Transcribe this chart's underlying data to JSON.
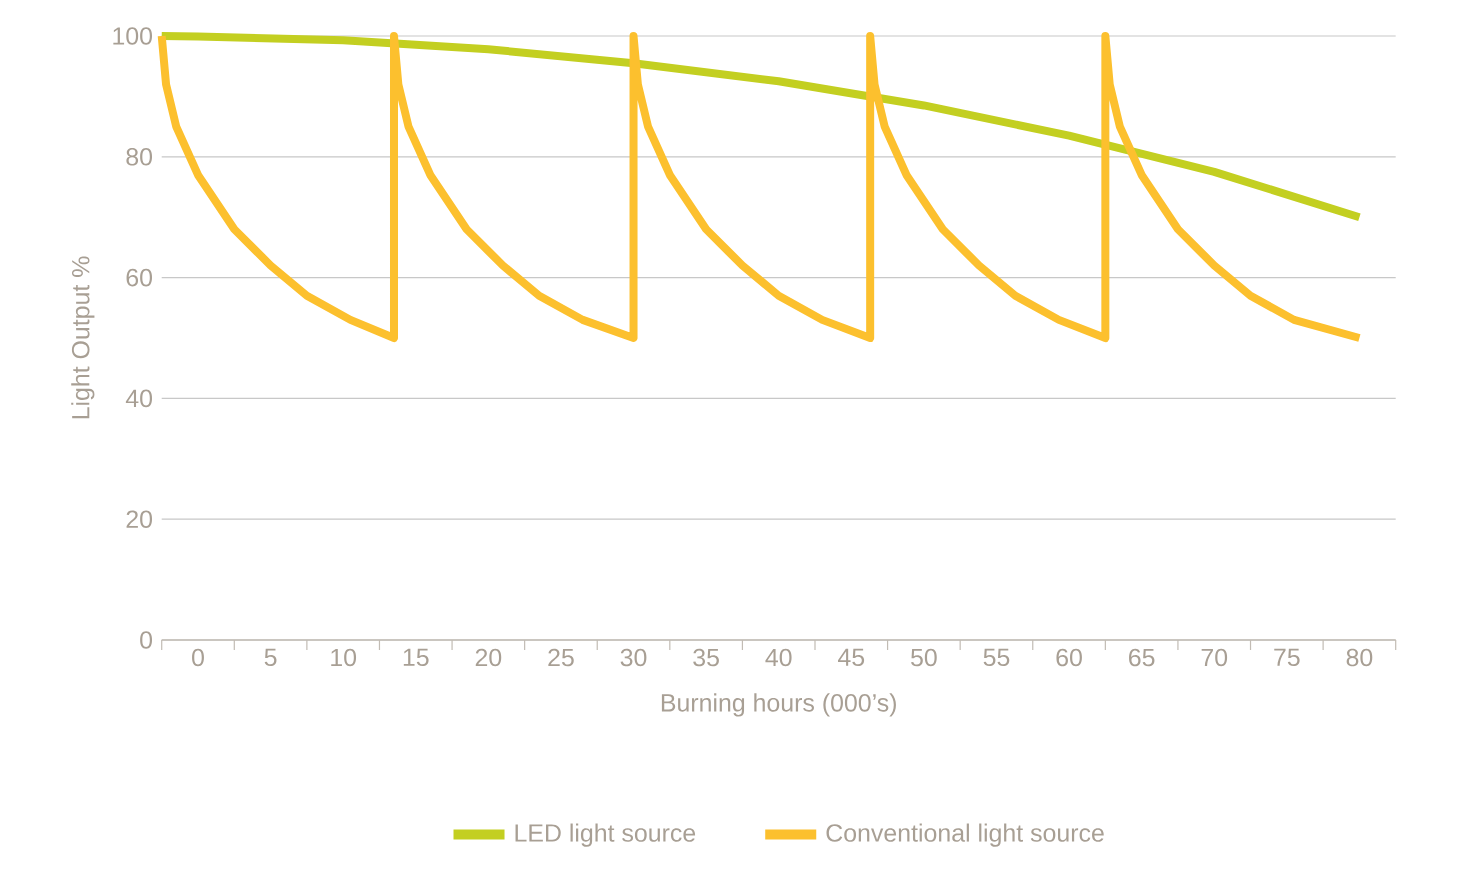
{
  "chart_data": {
    "type": "line",
    "xlabel": "Burning hours (000’s)",
    "ylabel": "Light Output %",
    "xlim": [
      -2.5,
      82.5
    ],
    "ylim": [
      0,
      100
    ],
    "xticks": [
      {
        "value": -2.5,
        "label": null
      },
      0,
      {
        "value": 2.5,
        "label": null
      },
      5,
      {
        "value": 7.5,
        "label": null
      },
      10,
      {
        "value": 12.5,
        "label": null
      },
      15,
      {
        "value": 17.5,
        "label": null
      },
      20,
      {
        "value": 22.5,
        "label": null
      },
      25,
      {
        "value": 27.5,
        "label": null
      },
      30,
      {
        "value": 32.5,
        "label": null
      },
      35,
      {
        "value": 37.5,
        "label": null
      },
      40,
      {
        "value": 42.5,
        "label": null
      },
      45,
      {
        "value": 47.5,
        "label": null
      },
      50,
      {
        "value": 52.5,
        "label": null
      },
      55,
      {
        "value": 57.5,
        "label": null
      },
      60,
      {
        "value": 62.5,
        "label": null
      },
      65,
      {
        "value": 67.5,
        "label": null
      },
      70,
      {
        "value": 72.5,
        "label": null
      },
      75,
      {
        "value": 77.5,
        "label": null
      },
      80,
      {
        "value": 82.5,
        "label": null
      }
    ],
    "yticks": [
      0,
      20,
      40,
      60,
      80,
      100
    ],
    "grid": "y",
    "legend": "bottom",
    "series": [
      {
        "name": "LED light source",
        "color": "#c3cf21",
        "x": [
          -2.5,
          0,
          10,
          20,
          30,
          40,
          50,
          60,
          70,
          80
        ],
        "values": [
          100,
          99.9,
          99.3,
          97.8,
          95.5,
          92.5,
          88.5,
          83.5,
          77.5,
          70
        ]
      },
      {
        "name": "Conventional light source",
        "color": "#fcc02e",
        "x": [
          -2.5,
          -2.2,
          -1.5,
          0,
          2.5,
          5,
          7.5,
          10.5,
          13.5,
          13.5,
          13.8,
          14.5,
          16,
          18.5,
          21,
          23.5,
          26.5,
          30,
          30,
          30.3,
          31,
          32.5,
          35,
          37.5,
          40,
          43,
          46.3,
          46.3,
          46.6,
          47.3,
          48.8,
          51.3,
          53.8,
          56.3,
          59.3,
          62.5,
          62.5,
          62.8,
          63.5,
          65,
          67.5,
          70,
          72.5,
          75.5,
          80
        ],
        "values": [
          100,
          92,
          85,
          77,
          68,
          62,
          57,
          53,
          50,
          100,
          92,
          85,
          77,
          68,
          62,
          57,
          53,
          50,
          100,
          92,
          85,
          77,
          68,
          62,
          57,
          53,
          50,
          100,
          92,
          85,
          77,
          68,
          62,
          57,
          53,
          50,
          100,
          92,
          85,
          77,
          68,
          62,
          57,
          53,
          50
        ]
      }
    ]
  }
}
